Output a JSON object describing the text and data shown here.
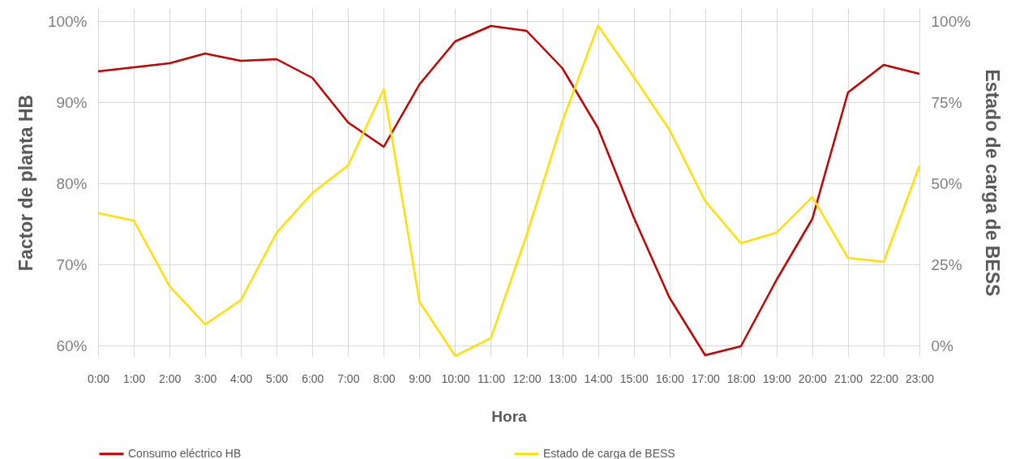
{
  "chart_data": {
    "type": "line",
    "xlabel": "Hora",
    "ylabel": "Factor de planta HB",
    "y2label": "Estado de carga de BESS",
    "categories": [
      "0:00",
      "1:00",
      "2:00",
      "3:00",
      "4:00",
      "5:00",
      "6:00",
      "7:00",
      "8:00",
      "9:00",
      "10:00",
      "11:00",
      "12:00",
      "13:00",
      "14:00",
      "15:00",
      "16:00",
      "17:00",
      "18:00",
      "19:00",
      "20:00",
      "21:00",
      "22:00",
      "23:00"
    ],
    "series": [
      {
        "name": "Consumo eléctrico HB",
        "color": "#c00000",
        "values": [
          93.8,
          94.3,
          94.8,
          96.0,
          95.1,
          95.3,
          93.0,
          87.5,
          84.5,
          92.2,
          97.5,
          99.4,
          98.8,
          94.2,
          86.8,
          75.8,
          65.9,
          58.8,
          59.9,
          68.1,
          75.6,
          91.2,
          94.6,
          93.5
        ]
      },
      {
        "name": "Estado de carga de BESS",
        "color": "#ffe000",
        "axis": "y2",
        "values": [
          40.8,
          38.5,
          18.3,
          6.5,
          14.0,
          34.8,
          47.0,
          55.5,
          79.0,
          13.5,
          -3.2,
          2.3,
          34.0,
          69.0,
          98.6,
          82.8,
          66.5,
          44.5,
          31.5,
          34.8,
          45.8,
          27.0,
          25.8,
          55.3
        ]
      }
    ],
    "ylim": [
      58.6,
      101.6
    ],
    "yticks": [
      {
        "value": 60,
        "label": "60%"
      },
      {
        "value": 70,
        "label": "70%"
      },
      {
        "value": 80,
        "label": "80%"
      },
      {
        "value": 90,
        "label": "90%"
      },
      {
        "value": 100,
        "label": "100%"
      }
    ],
    "y2lim": [
      -3.5,
      104
    ],
    "y2ticks": [
      {
        "value": 0,
        "label": "0%"
      },
      {
        "value": 25,
        "label": "25%"
      },
      {
        "value": 50,
        "label": "50%"
      },
      {
        "value": 75,
        "label": "75%"
      },
      {
        "value": 100,
        "label": "100%"
      }
    ],
    "grid": true,
    "legend": "bottom"
  }
}
